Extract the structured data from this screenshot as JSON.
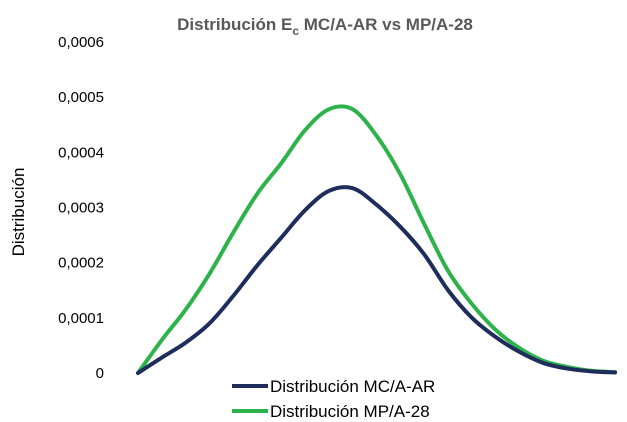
{
  "chart_data": {
    "type": "line",
    "title": "Distribución E",
    "title_subscript": "c",
    "title_suffix": " MC/A-AR vs MP/A-28",
    "xlabel": "",
    "ylabel": "Distribución",
    "ylim": [
      0,
      0.0006
    ],
    "yticks": [
      "0",
      "0,0001",
      "0,0002",
      "0,0003",
      "0,0004",
      "0,0005",
      "0,0006"
    ],
    "ytick_values": [
      0,
      0.0001,
      0.0002,
      0.0003,
      0.0004,
      0.0005,
      0.0006
    ],
    "x": [
      0,
      1,
      2,
      3,
      4,
      5,
      6,
      7,
      8,
      9,
      10,
      11,
      12,
      13,
      14,
      15,
      16,
      17,
      18,
      19,
      20
    ],
    "xlim": [
      0,
      20.5
    ],
    "grid": false,
    "legend_position": "bottom",
    "series": [
      {
        "name": "Distribución MC/A-AR",
        "color": "#1f2d5c",
        "values": [
          0,
          2.8e-05,
          5.5e-05,
          9e-05,
          0.00014,
          0.000195,
          0.000245,
          0.000295,
          0.00033,
          0.000335,
          0.000305,
          0.000265,
          0.000215,
          0.00015,
          0.0001,
          6.5e-05,
          3.8e-05,
          1.8e-05,
          8e-06,
          3e-06,
          1e-06
        ]
      },
      {
        "name": "Distribución MP/A-28",
        "color": "#2db34a",
        "values": [
          0,
          6e-05,
          0.000115,
          0.00018,
          0.000255,
          0.000325,
          0.00038,
          0.00044,
          0.000478,
          0.000478,
          0.00043,
          0.00036,
          0.00027,
          0.000185,
          0.000125,
          7.8e-05,
          4.5e-05,
          2.2e-05,
          1.1e-05,
          4e-06,
          1.5e-06
        ]
      }
    ]
  }
}
